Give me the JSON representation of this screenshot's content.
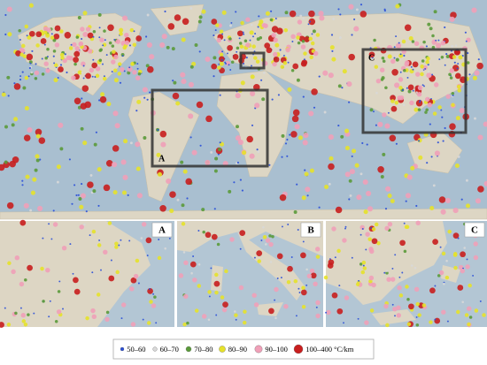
{
  "map": {
    "boxes": [
      {
        "label": "A"
      },
      {
        "label": "C"
      }
    ]
  },
  "insets": [
    {
      "label": "A"
    },
    {
      "label": "B"
    },
    {
      "label": "C"
    }
  ],
  "legend": {
    "items": [
      {
        "label": "50–60",
        "color": "#2a4fd8"
      },
      {
        "label": "60–70",
        "color": "#d8d8d8"
      },
      {
        "label": "70–80",
        "color": "#5a9a3a"
      },
      {
        "label": "80–90",
        "color": "#e6e22a"
      },
      {
        "label": "90–100",
        "color": "#f0a0b8"
      },
      {
        "label": "100–400 °C/km",
        "color": "#c81e1e"
      }
    ]
  }
}
